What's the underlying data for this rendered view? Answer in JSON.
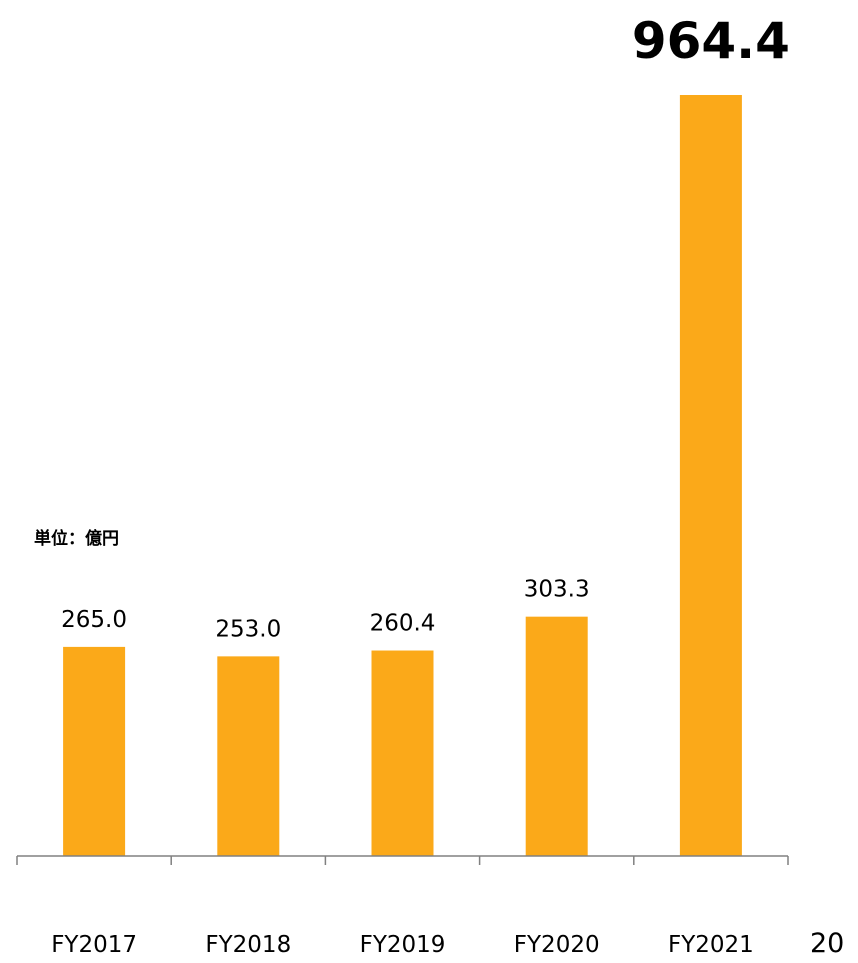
{
  "unit_label": "単位：億円",
  "page_number": "20",
  "chart_data": {
    "type": "bar",
    "categories": [
      "FY2017",
      "FY2018",
      "FY2019",
      "FY2020",
      "FY2021"
    ],
    "values": [
      265.0,
      253.0,
      260.4,
      303.3,
      964.4
    ],
    "data_labels": [
      "265.0",
      "253.0",
      "260.4",
      "303.3",
      "964.4"
    ],
    "highlight_index": 4,
    "title": "",
    "xlabel": "",
    "ylabel": "",
    "ylim": [
      0,
      1000
    ],
    "grid": false,
    "bar_color": "#FBA919",
    "axis_color": "#808080"
  }
}
